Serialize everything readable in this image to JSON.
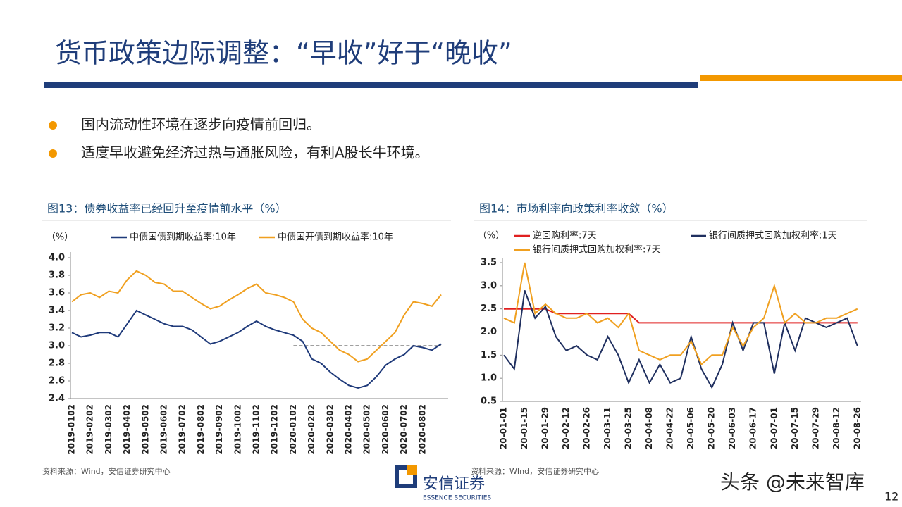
{
  "title": "货币政策边际调整：“早收”好于“晚收”",
  "bullets": [
    "国内流动性环境在逐步向疫情前回归。",
    "适度早收避免经济过热与通胀风险，有利A股长牛环境。"
  ],
  "chart_data": [
    {
      "type": "line",
      "title": "图13：债券收益率已经回升至疫情前水平（%）",
      "y_label": "（%）",
      "categories": [
        "2019-0102",
        null,
        "2019-0202",
        null,
        "2019-0302",
        null,
        "2019-0402",
        null,
        "2019-0502",
        null,
        "2019-0602",
        null,
        "2019-0702",
        null,
        "2019-0802",
        null,
        "2019-0902",
        null,
        "2019-1002",
        null,
        "2019-1102",
        null,
        "2019-1202",
        null,
        "2020-0102",
        null,
        "2020-0202",
        null,
        "2020-0302",
        null,
        "2020-0402",
        null,
        "2020-0502",
        null,
        "2020-0602",
        null,
        "2020-0702",
        null,
        "2020-0802",
        null,
        null
      ],
      "series": [
        {
          "name": "中债国债到期收益率:10年",
          "color": "#1f3a7a",
          "values": [
            3.15,
            3.1,
            3.12,
            3.15,
            3.15,
            3.1,
            3.25,
            3.4,
            3.35,
            3.3,
            3.25,
            3.22,
            3.22,
            3.18,
            3.1,
            3.02,
            3.05,
            3.1,
            3.15,
            3.22,
            3.28,
            3.22,
            3.18,
            3.15,
            3.12,
            3.05,
            2.85,
            2.8,
            2.7,
            2.62,
            2.55,
            2.52,
            2.55,
            2.65,
            2.78,
            2.85,
            2.9,
            3.0,
            2.98,
            2.95,
            3.02
          ]
        },
        {
          "name": "中债国开债到期收益率:10年",
          "color": "#f0a020",
          "values": [
            3.5,
            3.58,
            3.6,
            3.55,
            3.62,
            3.6,
            3.75,
            3.85,
            3.8,
            3.72,
            3.7,
            3.62,
            3.62,
            3.55,
            3.48,
            3.42,
            3.45,
            3.52,
            3.58,
            3.65,
            3.7,
            3.6,
            3.58,
            3.55,
            3.5,
            3.3,
            3.2,
            3.15,
            3.05,
            2.95,
            2.9,
            2.82,
            2.85,
            2.95,
            3.05,
            3.15,
            3.35,
            3.5,
            3.48,
            3.45,
            3.58
          ]
        }
      ],
      "reference_line": {
        "value": 3.0,
        "from": "2020-0102",
        "color": "#808080"
      },
      "ylim": [
        2.4,
        4.0
      ],
      "yticks": [
        2.4,
        2.6,
        2.8,
        {
          "value": 3.0,
          "label": "3.0"
        },
        3.2,
        3.4,
        3.6,
        3.8,
        {
          "value": 4.0,
          "label": "4.0"
        }
      ],
      "source": "资料来源：Wind，安信证券研究中心"
    },
    {
      "type": "line",
      "title": "图14：市场利率向政策利率收敛（%）",
      "y_label": "（%）",
      "categories": [
        "20-01-01",
        null,
        "20-01-15",
        null,
        "20-01-29",
        null,
        "20-02-12",
        null,
        "20-02-26",
        null,
        "20-03-11",
        null,
        "20-03-25",
        null,
        "20-04-08",
        null,
        "20-04-22",
        null,
        "20-05-06",
        null,
        "20-05-20",
        null,
        "20-06-03",
        null,
        "20-06-17",
        null,
        "20-07-01",
        null,
        "20-07-15",
        null,
        "20-07-29",
        null,
        "20-08-12",
        null,
        "20-08-26"
      ],
      "series": [
        {
          "name": "逆回购利率:7天",
          "color": "#e02020",
          "values": [
            2.5,
            2.5,
            2.5,
            2.5,
            2.5,
            2.4,
            2.4,
            2.4,
            2.4,
            2.4,
            2.4,
            2.4,
            2.4,
            2.2,
            2.2,
            2.2,
            2.2,
            2.2,
            2.2,
            2.2,
            2.2,
            2.2,
            2.2,
            2.2,
            2.2,
            2.2,
            2.2,
            2.2,
            2.2,
            2.2,
            2.2,
            2.2,
            2.2,
            2.2,
            2.2
          ]
        },
        {
          "name": "银行间质押式回购加权利率:1天",
          "color": "#1f2f5f",
          "values": [
            1.5,
            1.2,
            2.9,
            2.3,
            2.55,
            1.9,
            1.6,
            1.7,
            1.5,
            1.4,
            1.9,
            1.5,
            0.9,
            1.4,
            0.9,
            1.3,
            0.9,
            1.0,
            1.9,
            1.2,
            0.8,
            1.3,
            2.2,
            1.6,
            2.2,
            2.2,
            1.1,
            2.2,
            1.6,
            2.3,
            2.2,
            2.1,
            2.2,
            2.3,
            1.7
          ]
        },
        {
          "name": "银行间质押式回购加权利率:7天",
          "color": "#f0a020",
          "values": [
            2.3,
            2.2,
            3.5,
            2.4,
            2.6,
            2.4,
            2.3,
            2.3,
            2.4,
            2.2,
            2.3,
            2.1,
            2.4,
            1.6,
            1.5,
            1.4,
            1.5,
            1.5,
            1.8,
            1.3,
            1.5,
            1.5,
            2.1,
            1.7,
            2.1,
            2.3,
            3.0,
            2.2,
            2.4,
            2.2,
            2.2,
            2.3,
            2.3,
            2.4,
            2.5
          ]
        }
      ],
      "ylim": [
        0.5,
        3.5
      ],
      "yticks": [
        0.5,
        {
          "value": 1.0,
          "label": "1.0"
        },
        1.5,
        {
          "value": 2.0,
          "label": "2.0"
        },
        2.5,
        {
          "value": 3.0,
          "label": "3.0"
        },
        3.5
      ],
      "source": "资料来源：WInd，安信证券研究中心"
    }
  ],
  "logo": {
    "name": "安信证券",
    "subtitle": "ESSENCE SECURITIES"
  },
  "watermark": "头条 @未来智库",
  "page_number": "12"
}
